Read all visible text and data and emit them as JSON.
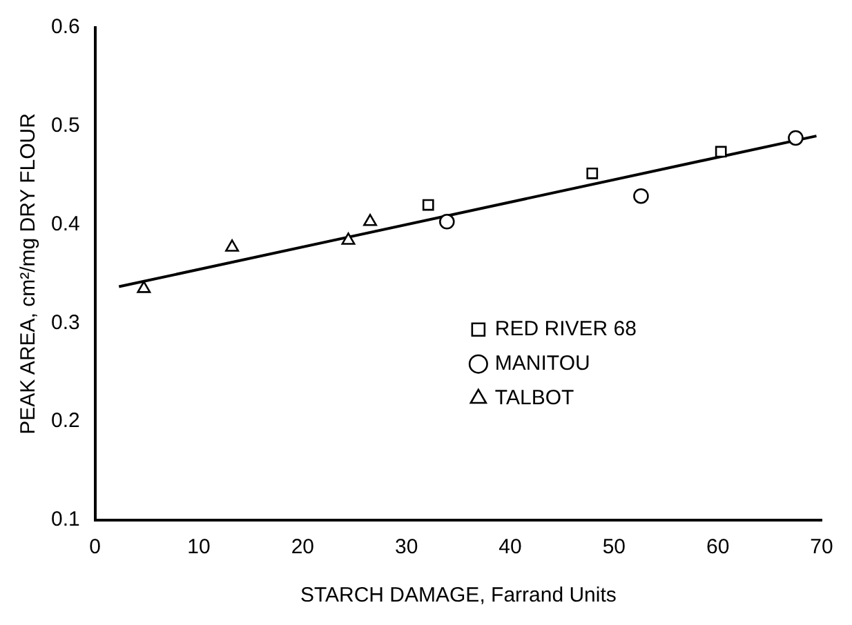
{
  "chart_data": {
    "type": "scatter",
    "xlabel": "STARCH DAMAGE, Farrand Units",
    "ylabel": "PEAK AREA, cm²/mg DRY FLOUR",
    "xlim": [
      0,
      70
    ],
    "ylim": [
      0.1,
      0.6
    ],
    "xticks": [
      0,
      10,
      20,
      30,
      40,
      50,
      60,
      70
    ],
    "yticks": [
      0.1,
      0.2,
      0.3,
      0.4,
      0.5,
      0.6
    ],
    "grid": false,
    "legend": "right",
    "series": [
      {
        "name": "RED RIVER 68",
        "color": "#000000",
        "marker": "square",
        "x": [
          32.1,
          47.9,
          60.3
        ],
        "values": [
          0.42,
          0.452,
          0.474
        ]
      },
      {
        "name": "MANITOU",
        "color": "#000000",
        "marker": "circle",
        "x": [
          33.9,
          52.6,
          67.5
        ],
        "values": [
          0.403,
          0.429,
          0.488
        ]
      },
      {
        "name": "TALBOT",
        "color": "#000000",
        "marker": "triangle",
        "x": [
          4.7,
          13.2,
          24.4,
          26.5
        ],
        "values": [
          0.335,
          0.377,
          0.384,
          0.403
        ]
      },
      {
        "type": "line",
        "color": "#000000",
        "x": [
          2.3,
          69.5
        ],
        "values": [
          0.337,
          0.49
        ]
      }
    ]
  }
}
